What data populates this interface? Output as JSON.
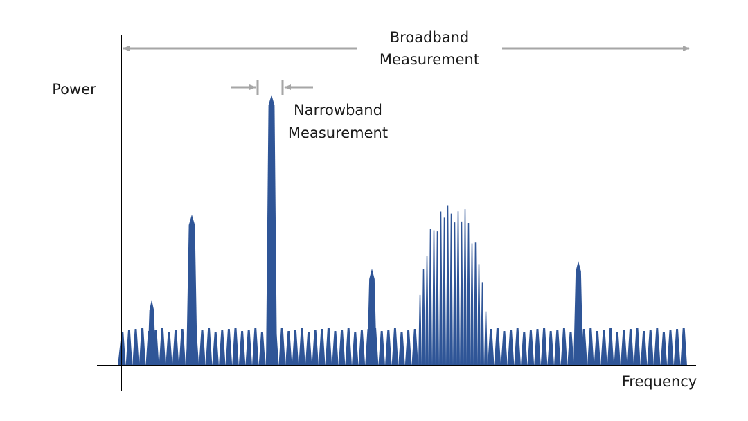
{
  "broadband_label": {
    "lines": [
      "Broadband",
      "Measurement"
    ]
  },
  "y_axis_label": "Power",
  "narrowband_label": {
    "lines": [
      "Narrowband",
      "Measurement"
    ]
  },
  "x_axis_label": "Frequency"
}
